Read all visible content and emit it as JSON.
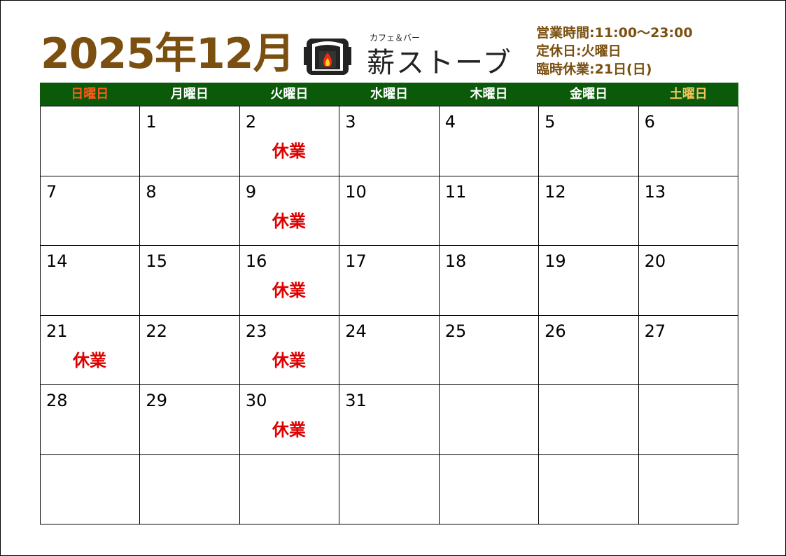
{
  "title": "2025年12月",
  "logo": {
    "subtitle": "カフェ＆バー",
    "name": "薪ストーブ"
  },
  "info": [
    "営業時間:11:00〜23:00",
    "定休日:火曜日",
    "臨時休業:21日(日)"
  ],
  "colors": {
    "title": "#7a4f10",
    "header_bg": "#0a5a0a",
    "sunday": "#ff5a1a",
    "saturday": "#f2c45a",
    "closed": "#e00000"
  },
  "weekdays": [
    "日曜日",
    "月曜日",
    "火曜日",
    "水曜日",
    "木曜日",
    "金曜日",
    "土曜日"
  ],
  "cells": [
    {
      "day": "",
      "note": ""
    },
    {
      "day": "1",
      "note": ""
    },
    {
      "day": "2",
      "note": "休業"
    },
    {
      "day": "3",
      "note": ""
    },
    {
      "day": "4",
      "note": ""
    },
    {
      "day": "5",
      "note": ""
    },
    {
      "day": "6",
      "note": ""
    },
    {
      "day": "7",
      "note": ""
    },
    {
      "day": "8",
      "note": ""
    },
    {
      "day": "9",
      "note": "休業"
    },
    {
      "day": "10",
      "note": ""
    },
    {
      "day": "11",
      "note": ""
    },
    {
      "day": "12",
      "note": ""
    },
    {
      "day": "13",
      "note": ""
    },
    {
      "day": "14",
      "note": ""
    },
    {
      "day": "15",
      "note": ""
    },
    {
      "day": "16",
      "note": "休業"
    },
    {
      "day": "17",
      "note": ""
    },
    {
      "day": "18",
      "note": ""
    },
    {
      "day": "19",
      "note": ""
    },
    {
      "day": "20",
      "note": ""
    },
    {
      "day": "21",
      "note": "休業"
    },
    {
      "day": "22",
      "note": ""
    },
    {
      "day": "23",
      "note": "休業"
    },
    {
      "day": "24",
      "note": ""
    },
    {
      "day": "25",
      "note": ""
    },
    {
      "day": "26",
      "note": ""
    },
    {
      "day": "27",
      "note": ""
    },
    {
      "day": "28",
      "note": ""
    },
    {
      "day": "29",
      "note": ""
    },
    {
      "day": "30",
      "note": "休業"
    },
    {
      "day": "31",
      "note": ""
    },
    {
      "day": "",
      "note": ""
    },
    {
      "day": "",
      "note": ""
    },
    {
      "day": "",
      "note": ""
    },
    {
      "day": "",
      "note": ""
    },
    {
      "day": "",
      "note": ""
    },
    {
      "day": "",
      "note": ""
    },
    {
      "day": "",
      "note": ""
    },
    {
      "day": "",
      "note": ""
    },
    {
      "day": "",
      "note": ""
    },
    {
      "day": "",
      "note": ""
    }
  ]
}
